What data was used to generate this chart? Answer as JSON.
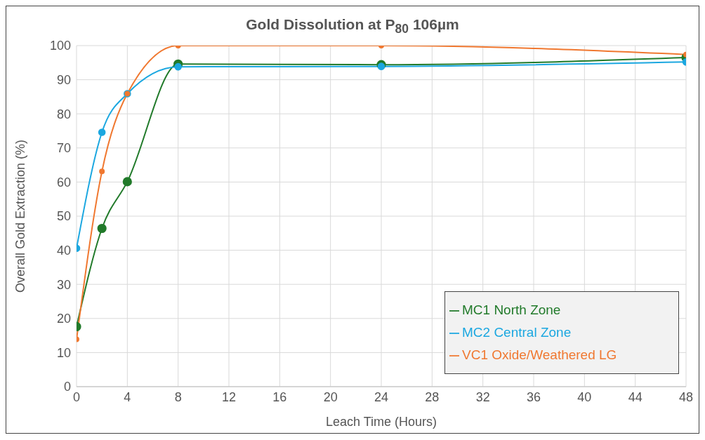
{
  "chart_data": {
    "type": "line",
    "title": "Gold Dissolution at P$_{80}$ 106µm",
    "xlabel": "Leach Time (Hours)",
    "ylabel": "Overall Gold Extraction (%)",
    "x": [
      0,
      2,
      4,
      8,
      24,
      48
    ],
    "series": [
      {
        "name": "MC1 North Zone",
        "color": "#217a2a",
        "values": [
          17.6,
          46.4,
          60.1,
          94.6,
          94.4,
          96.5
        ]
      },
      {
        "name": "MC2 Central Zone",
        "color": "#1ba7e0",
        "values": [
          40.6,
          74.6,
          85.9,
          93.8,
          93.9,
          95.2
        ]
      },
      {
        "name": "VC1 Oxide/Weathered LG",
        "color": "#f07830",
        "values": [
          13.9,
          63.1,
          85.9,
          100,
          100,
          97.4
        ]
      }
    ],
    "xlim": [
      0,
      48
    ],
    "xticks": [
      0,
      4,
      8,
      12,
      16,
      20,
      24,
      28,
      32,
      36,
      40,
      44,
      48
    ],
    "ylim": [
      0,
      100
    ],
    "yticks": [
      0,
      10,
      20,
      30,
      40,
      50,
      60,
      70,
      80,
      90,
      100
    ],
    "grid": true,
    "legend": "bottom right",
    "marker": "circle",
    "line_style": "solid"
  }
}
